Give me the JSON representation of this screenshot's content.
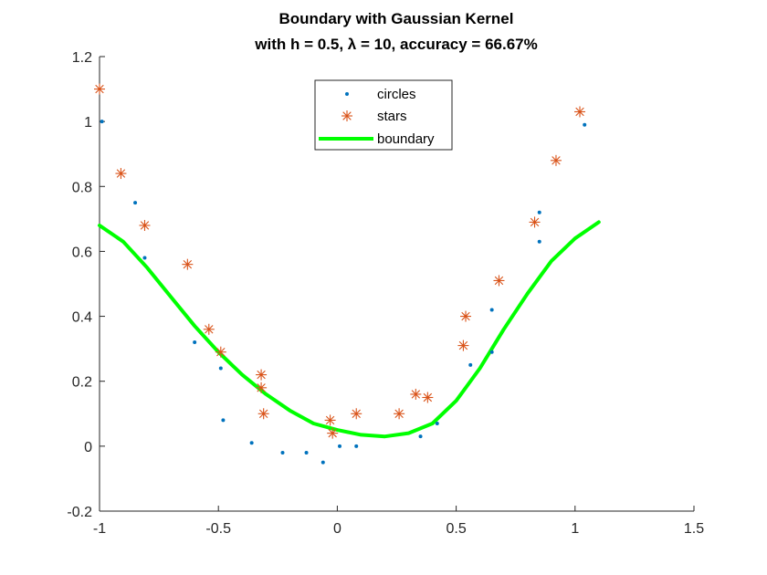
{
  "chart_data": {
    "type": "scatter",
    "title": [
      "Boundary with Gaussian Kernel",
      "with h = 0.5, λ = 10, accuracy = 66.67%"
    ],
    "xlabel": "",
    "ylabel": "",
    "xlim": [
      -1,
      1.5
    ],
    "ylim": [
      -0.2,
      1.2
    ],
    "xticks": [
      -1,
      -0.5,
      0,
      0.5,
      1,
      1.5
    ],
    "xtick_labels": [
      "-1",
      "-0.5",
      "0",
      "0.5",
      "1",
      "1.5"
    ],
    "yticks": [
      -0.2,
      0,
      0.2,
      0.4,
      0.6,
      0.8,
      1,
      1.2
    ],
    "ytick_labels": [
      "-0.2",
      "0",
      "0.2",
      "0.4",
      "0.6",
      "0.8",
      "1",
      "1.2"
    ],
    "grid": false,
    "legend_position": "top-center",
    "series": [
      {
        "name": "circles",
        "marker": "dot",
        "color": "#0072BD",
        "x": [
          -0.99,
          -0.85,
          -0.81,
          -0.6,
          -0.49,
          -0.48,
          -0.36,
          -0.23,
          -0.13,
          -0.06,
          0.01,
          0.08,
          0.35,
          0.42,
          0.56,
          0.65,
          0.65,
          0.85,
          0.85,
          1.04
        ],
        "y": [
          1.0,
          0.75,
          0.58,
          0.32,
          0.24,
          0.08,
          0.01,
          -0.02,
          -0.02,
          -0.05,
          0.0,
          0.0,
          0.03,
          0.07,
          0.25,
          0.42,
          0.29,
          0.72,
          0.63,
          0.99
        ]
      },
      {
        "name": "stars",
        "marker": "asterisk",
        "color": "#D95319",
        "x": [
          -1.0,
          -0.91,
          -0.81,
          -0.63,
          -0.54,
          -0.49,
          -0.32,
          -0.32,
          -0.31,
          -0.03,
          -0.02,
          0.08,
          0.26,
          0.33,
          0.38,
          0.53,
          0.54,
          0.68,
          0.83,
          0.92,
          1.02
        ],
        "y": [
          1.1,
          0.84,
          0.68,
          0.56,
          0.36,
          0.29,
          0.22,
          0.18,
          0.1,
          0.08,
          0.04,
          0.1,
          0.1,
          0.16,
          0.15,
          0.31,
          0.4,
          0.51,
          0.69,
          0.88,
          1.03
        ]
      },
      {
        "name": "boundary",
        "marker": "line",
        "color": "#00FF00",
        "x": [
          -1.0,
          -0.9,
          -0.8,
          -0.7,
          -0.6,
          -0.5,
          -0.4,
          -0.3,
          -0.2,
          -0.1,
          0.0,
          0.1,
          0.2,
          0.3,
          0.4,
          0.5,
          0.6,
          0.7,
          0.8,
          0.9,
          1.0,
          1.1
        ],
        "y": [
          0.68,
          0.63,
          0.55,
          0.46,
          0.37,
          0.29,
          0.22,
          0.16,
          0.11,
          0.07,
          0.05,
          0.035,
          0.03,
          0.04,
          0.07,
          0.14,
          0.24,
          0.36,
          0.47,
          0.57,
          0.64,
          0.69
        ]
      }
    ]
  }
}
